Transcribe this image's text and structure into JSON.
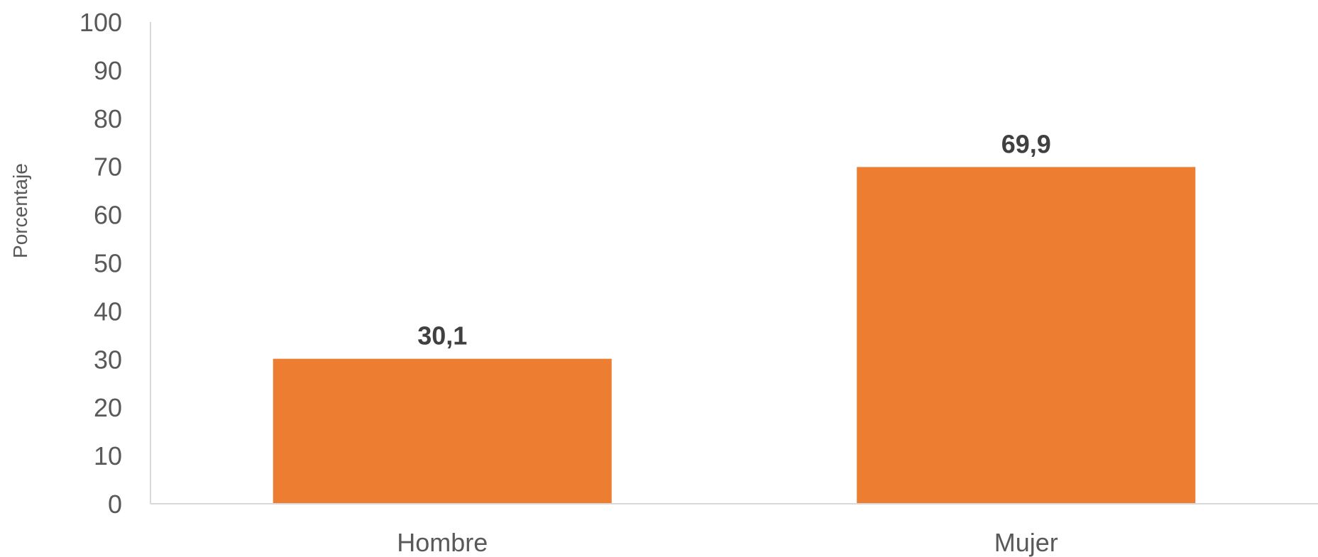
{
  "chart_data": {
    "type": "bar",
    "categories": [
      "Hombre",
      "Mujer"
    ],
    "values": [
      30.1,
      69.9
    ],
    "value_labels": [
      "30,1",
      "69,9"
    ],
    "title": "",
    "xlabel": "",
    "ylabel": "Porcentaje",
    "ylim": [
      0,
      100
    ],
    "yticks": [
      0,
      10,
      20,
      30,
      40,
      50,
      60,
      70,
      80,
      90,
      100
    ],
    "ytick_labels": [
      "0",
      "10",
      "20",
      "30",
      "40",
      "50",
      "60",
      "70",
      "80",
      "90",
      "100"
    ],
    "grid": false,
    "legend": "none",
    "colors": {
      "bar": "#ED7D31",
      "axis": "#D9D9D9",
      "tick_text": "#595959",
      "data_label_text": "#404040"
    }
  }
}
